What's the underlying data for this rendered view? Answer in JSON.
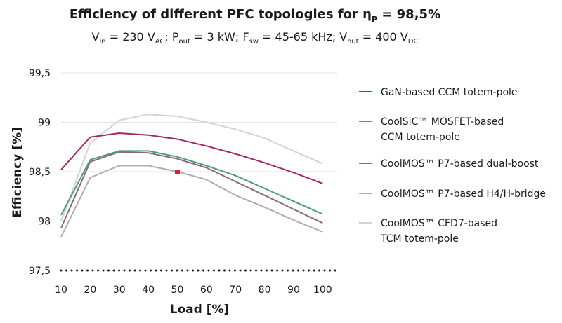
{
  "chart_data": {
    "type": "line",
    "title": "Efficiency of different PFC topologies for η",
    "title_sub": "P",
    "title_tail": " = 98,5%",
    "subtitle": {
      "vin": "V",
      "vin_sub": "in",
      "vin_val": " = 230 V",
      "vin_unit_sub": "AC",
      "pout": "; P",
      "pout_sub": "out",
      "pout_val": " = 3 kW; F",
      "fsw_sub": "sw",
      "fsw_val": " = 45-65 kHz; V",
      "vout_sub": "out",
      "vout_val": " = 400 V",
      "vout_unit_sub": "DC"
    },
    "xlabel": "Load [%]",
    "ylabel": "Efficiency [%]",
    "x": [
      10,
      20,
      30,
      40,
      50,
      60,
      70,
      80,
      90,
      100
    ],
    "x_tick_labels": [
      "10",
      "20",
      "30",
      "40",
      "50",
      "60",
      "70",
      "80",
      "90",
      "100"
    ],
    "xlim": [
      10,
      105
    ],
    "ylim": [
      97.5,
      99.5
    ],
    "y_ticks": [
      97.5,
      98,
      98.5,
      99,
      99.5
    ],
    "y_tick_labels": [
      "97,5",
      "98",
      "98,5",
      "99",
      "99,5"
    ],
    "grid": true,
    "reference_line": {
      "y": 97.5,
      "style": "dotted"
    },
    "marker": {
      "x": 50,
      "y": 98.5,
      "color": "#d4213d"
    },
    "legend_position": "right",
    "series": [
      {
        "name": "GaN-based CCM totem-pole",
        "name_lines": [
          "GaN-based CCM totem-pole"
        ],
        "color": "#a3286a",
        "values": [
          98.52,
          98.85,
          98.89,
          98.87,
          98.83,
          98.76,
          98.68,
          98.59,
          98.49,
          98.38
        ]
      },
      {
        "name": "CoolSiC™ MOSFET-based CCM totem-pole",
        "name_lines": [
          "CoolSiC™ MOSFET-based",
          "CCM totem-pole"
        ],
        "color": "#4d9c87",
        "values": [
          98.06,
          98.62,
          98.71,
          98.71,
          98.65,
          98.56,
          98.46,
          98.33,
          98.2,
          98.07
        ]
      },
      {
        "name": "CoolMOS™ P7-based dual-boost",
        "name_lines": [
          "CoolMOS™ P7-based dual-boost"
        ],
        "color": "#8a6a74",
        "values": [
          97.93,
          98.6,
          98.7,
          98.69,
          98.63,
          98.54,
          98.4,
          98.26,
          98.12,
          97.98
        ]
      },
      {
        "name": "CoolMOS™ P7-based H4/H-bridge",
        "name_lines": [
          "CoolMOS™ P7-based H4/H-bridge"
        ],
        "color": "#b3aaae",
        "values": [
          97.84,
          98.44,
          98.56,
          98.56,
          98.5,
          98.42,
          98.26,
          98.14,
          98.01,
          97.89
        ]
      },
      {
        "name": "CoolMOS™ CFD7-based TCM totem-pole",
        "name_lines": [
          "CoolMOS™ CFD7-based",
          "TCM totem-pole"
        ],
        "color": "#d6d1d3",
        "values": [
          98.0,
          98.79,
          99.02,
          99.08,
          99.06,
          99.0,
          98.93,
          98.84,
          98.71,
          98.58
        ]
      }
    ]
  }
}
